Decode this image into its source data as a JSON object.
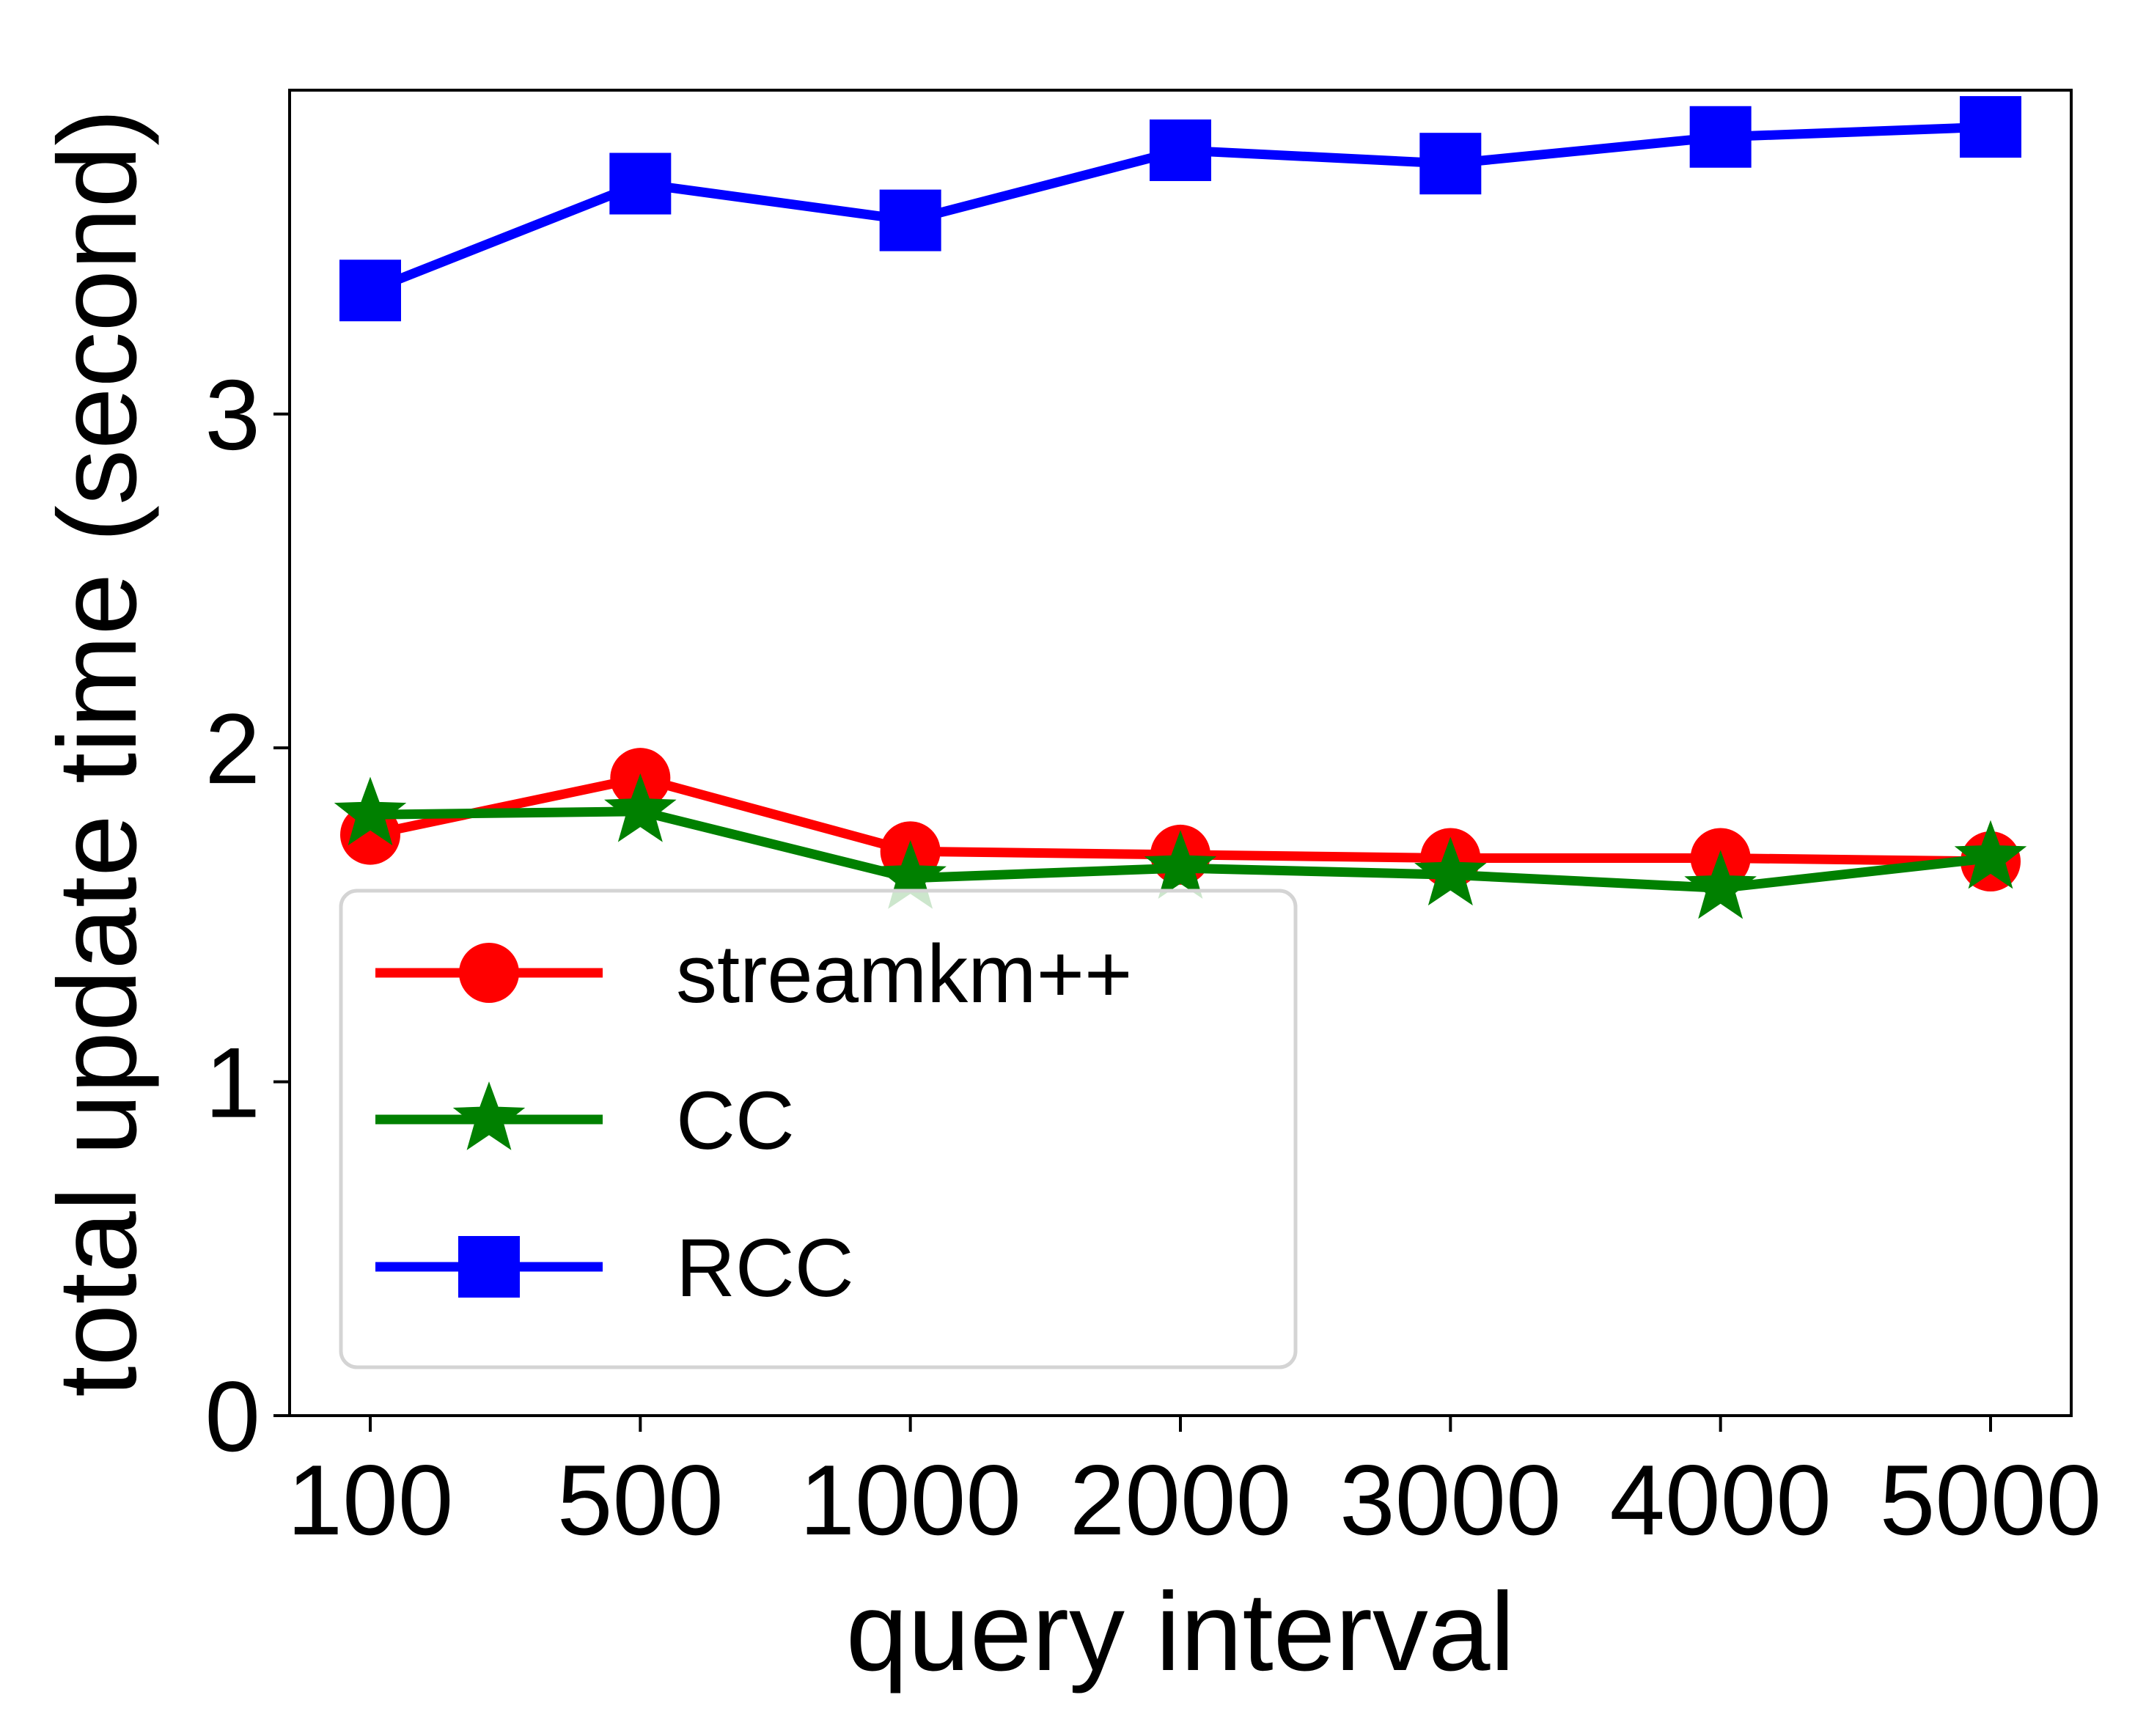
{
  "chart_data": {
    "type": "line",
    "categories": [
      "100",
      "500",
      "1000",
      "2000",
      "3000",
      "4000",
      "5000"
    ],
    "xlabel": "query interval",
    "ylabel": "total update time (second)",
    "ylim": [
      0,
      3.97
    ],
    "yticks": [
      0,
      1,
      2,
      3
    ],
    "grid": false,
    "legend_position": "lower-left",
    "series": [
      {
        "name": "streamkm++",
        "color": "#ff0000",
        "marker": "circle",
        "values": [
          1.74,
          1.91,
          1.69,
          1.68,
          1.67,
          1.67,
          1.66
        ]
      },
      {
        "name": "CC",
        "color": "#008000",
        "marker": "star",
        "values": [
          1.8,
          1.81,
          1.61,
          1.64,
          1.62,
          1.58,
          1.67
        ]
      },
      {
        "name": "RCC",
        "color": "#0000ff",
        "marker": "square",
        "values": [
          3.37,
          3.69,
          3.58,
          3.79,
          3.75,
          3.83,
          3.86
        ]
      }
    ]
  }
}
